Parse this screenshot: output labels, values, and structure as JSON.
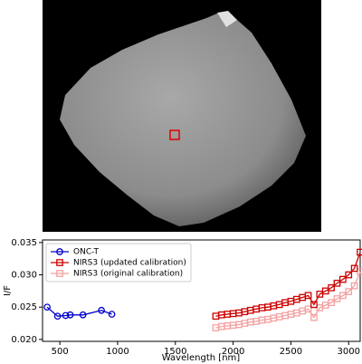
{
  "chart_data": {
    "type": "line",
    "xlabel": "Wavelength [nm]",
    "ylabel": "I/F",
    "xlim": [
      350,
      3100
    ],
    "ylim": [
      0.0197,
      0.0354
    ],
    "xticks": [
      500,
      1000,
      1500,
      2000,
      2500,
      3000
    ],
    "yticks": [
      {
        "value": 0.02,
        "label": "0.020"
      },
      0.025,
      {
        "value": 0.03,
        "label": "0.030"
      },
      0.035
    ],
    "legend": "upper left",
    "series": [
      {
        "name": "ONC-T",
        "color": "#0000cc",
        "marker": "circle",
        "x": [
          390,
          480,
          550,
          590,
          700,
          860,
          950
        ],
        "values": [
          0.025,
          0.0236,
          0.0237,
          0.0238,
          0.0238,
          0.0245,
          0.0239
        ]
      },
      {
        "name": "NIRS3 (updated calibration)",
        "color": "#cc0000",
        "marker": "square",
        "x": [
          1850,
          1900,
          1950,
          2000,
          2050,
          2100,
          2150,
          2200,
          2250,
          2300,
          2350,
          2400,
          2450,
          2500,
          2550,
          2600,
          2650,
          2700,
          2750,
          2800,
          2850,
          2900,
          2950,
          3000,
          3050,
          3100
        ],
        "values": [
          0.0236,
          0.0238,
          0.0239,
          0.024,
          0.0241,
          0.0243,
          0.0245,
          0.0247,
          0.0249,
          0.025,
          0.0252,
          0.0254,
          0.0257,
          0.0259,
          0.0262,
          0.0265,
          0.0268,
          0.0254,
          0.027,
          0.0275,
          0.028,
          0.0287,
          0.0293,
          0.03,
          0.031,
          0.0335
        ]
      },
      {
        "name": "NIRS3 (original calibration)",
        "color": "#f4a0a0",
        "marker": "square",
        "x": [
          1850,
          1900,
          1950,
          2000,
          2050,
          2100,
          2150,
          2200,
          2250,
          2300,
          2350,
          2400,
          2450,
          2500,
          2550,
          2600,
          2650,
          2700,
          2750,
          2800,
          2850,
          2900,
          2950,
          3000,
          3050,
          3100
        ],
        "values": [
          0.0218,
          0.022,
          0.0221,
          0.0222,
          0.0223,
          0.0225,
          0.0227,
          0.0228,
          0.023,
          0.0231,
          0.0233,
          0.0235,
          0.0237,
          0.0239,
          0.0241,
          0.0244,
          0.0247,
          0.0234,
          0.0249,
          0.0253,
          0.0257,
          0.0263,
          0.0268,
          0.0274,
          0.0283,
          0.0305
        ]
      }
    ]
  }
}
